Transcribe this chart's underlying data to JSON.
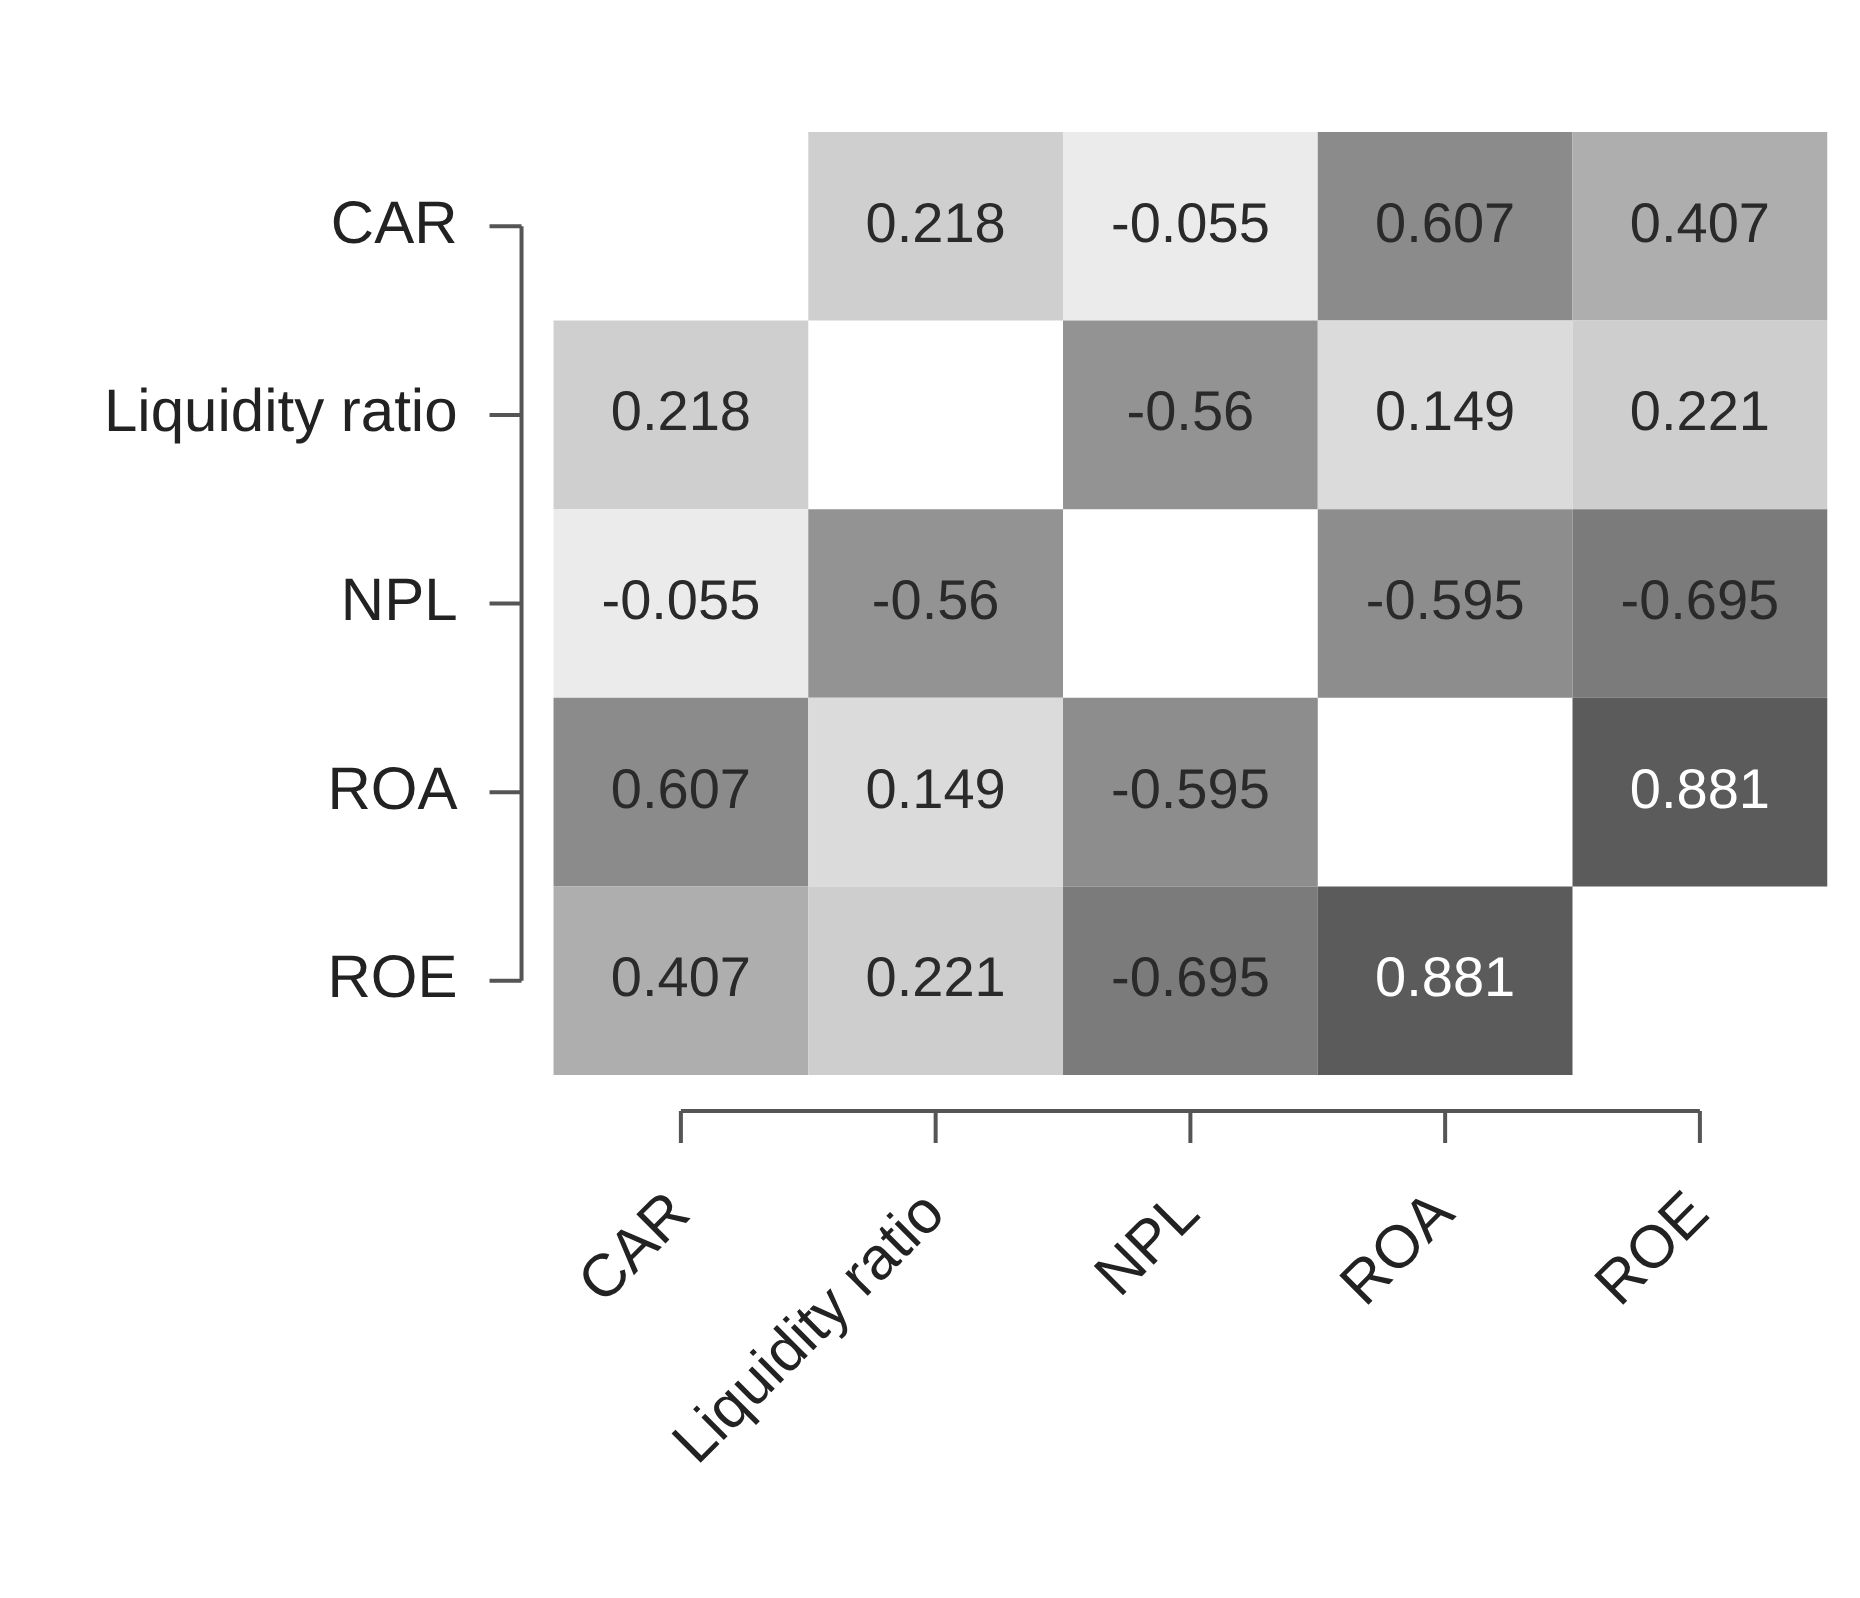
{
  "chart_data": {
    "type": "heatmap",
    "categories": [
      "CAR",
      "Liquidity ratio",
      "NPL",
      "ROA",
      "ROE"
    ],
    "y_categories": [
      "CAR",
      "Liquidity ratio",
      "NPL",
      "ROA",
      "ROE"
    ],
    "cells": [
      [
        null,
        0.218,
        -0.055,
        0.607,
        0.407
      ],
      [
        0.218,
        null,
        -0.56,
        0.149,
        0.221
      ],
      [
        -0.055,
        -0.56,
        null,
        -0.595,
        -0.695
      ],
      [
        0.607,
        0.149,
        -0.595,
        null,
        0.881
      ],
      [
        0.407,
        0.221,
        -0.695,
        0.881,
        null
      ]
    ],
    "data_labels": true
  }
}
